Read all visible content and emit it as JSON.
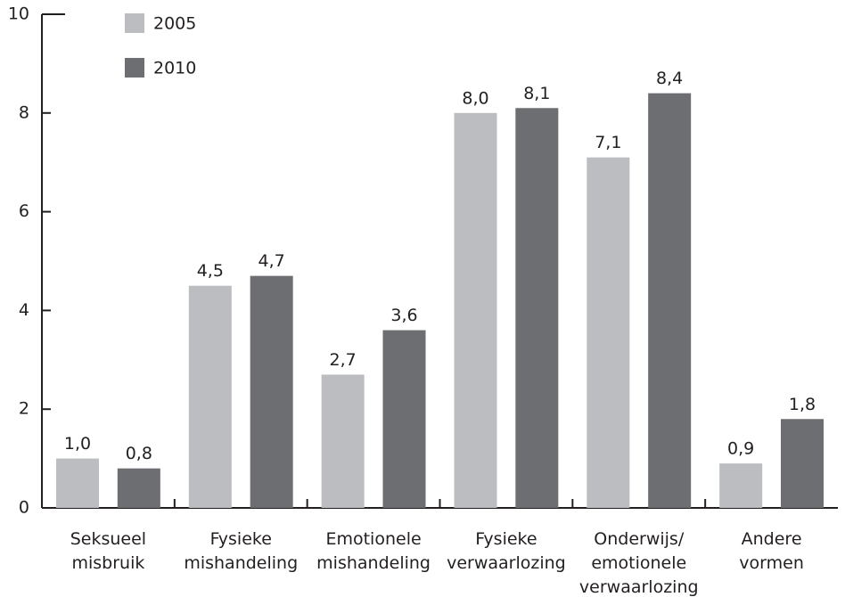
{
  "chart_data": {
    "type": "bar",
    "categories": [
      "Seksueel\nmisbruik",
      "Fysieke\nmishandeling",
      "Emotionele\nmishandeling",
      "Fysieke\nverwaarlozing",
      "Onderwijs/\nemotionele\nverwaarlozing",
      "Andere\nvormen"
    ],
    "series": [
      {
        "name": "2005",
        "color": "#bcbdc0",
        "values": [
          1.0,
          4.5,
          2.7,
          8.0,
          7.1,
          0.9
        ],
        "value_labels": [
          "1,0",
          "4,5",
          "2,7",
          "8,0",
          "7,1",
          "0,9"
        ]
      },
      {
        "name": "2010",
        "color": "#6d6e71",
        "values": [
          0.8,
          4.7,
          3.6,
          8.1,
          8.4,
          1.8
        ],
        "value_labels": [
          "0,8",
          "4,7",
          "3,6",
          "8,1",
          "8,4",
          "1,8"
        ]
      }
    ],
    "ylim": [
      0,
      10
    ],
    "yticks": [
      0,
      2,
      4,
      6,
      8,
      10
    ],
    "legend": "top-left"
  }
}
